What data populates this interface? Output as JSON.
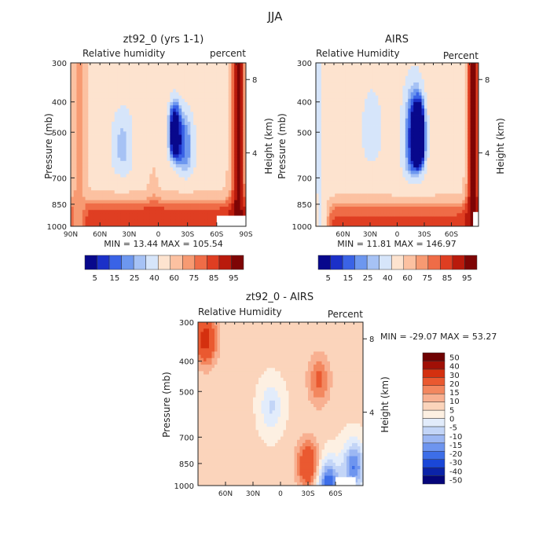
{
  "figure": {
    "title": "JJA"
  },
  "axes": {
    "pressure_label": "Pressure (mb)",
    "height_label": "Height (km)",
    "pressure_ticks": [
      "300",
      "400",
      "500",
      "700",
      "850",
      "1000"
    ],
    "pressure_values": [
      300,
      400,
      500,
      700,
      850,
      1000
    ],
    "height_ticks": [
      "8",
      "4"
    ],
    "height_values": [
      8,
      4
    ]
  },
  "palette": {
    "abs": [
      "#08088c",
      "#1b30c8",
      "#3a63e6",
      "#6d97ef",
      "#a6c2f5",
      "#d6e5fa",
      "#fde3cf",
      "#fcc1a1",
      "#f79a72",
      "#ef6c47",
      "#df3e22",
      "#b91a0c",
      "#7e0505"
    ],
    "diff": [
      "#05057a",
      "#0b23a8",
      "#1a47d8",
      "#3d6ee8",
      "#6e95ef",
      "#9cb7f3",
      "#c3d5f7",
      "#e2ecfb",
      "#fdf0e2",
      "#fbd4bb",
      "#f8b091",
      "#f3875f",
      "#ea5930",
      "#d4300f",
      "#a01006",
      "#6f0202"
    ]
  },
  "chart_data": [
    {
      "id": "model",
      "type": "heatmap",
      "title": "zt92_0 (yrs 1-1)",
      "subtitle_left": "Relative humidity",
      "subtitle_right": "percent",
      "xlabel": "",
      "ylabel": "Pressure (mb)",
      "ylabel_right": "Height (km)",
      "x_ticks": [
        "90N",
        "60N",
        "30N",
        "0",
        "30S",
        "60S",
        "90S"
      ],
      "x_values": [
        90,
        60,
        30,
        0,
        -30,
        -60,
        -90
      ],
      "xlim": [
        90,
        -90
      ],
      "ylim": [
        1000,
        300
      ],
      "min_max_text": "MIN =  13.44  MAX = 105.54",
      "min": 13.44,
      "max": 105.54,
      "colorbar_labels": [
        "5",
        "15",
        "25",
        "40",
        "60",
        "75",
        "85",
        "95"
      ],
      "colorbar_levels": [
        5,
        10,
        15,
        20,
        25,
        30,
        40,
        50,
        60,
        70,
        75,
        80,
        85,
        90,
        95
      ],
      "features": [
        {
          "kind": "background",
          "value": 55
        },
        {
          "kind": "trough",
          "lat": 37,
          "p_low": 390,
          "p_high": 720,
          "width": 15,
          "value": 28
        },
        {
          "kind": "trough",
          "lat": -28,
          "p_low": 400,
          "p_high": 720,
          "width": 12,
          "value": 22
        },
        {
          "kind": "trough",
          "lat": -16,
          "p_low": 380,
          "p_high": 620,
          "width": 7,
          "value": 10
        },
        {
          "kind": "moist_column",
          "lat": 5,
          "width": 6,
          "value": 72
        },
        {
          "kind": "pbl",
          "p_top": 820,
          "value": 85
        },
        {
          "kind": "moist_edge",
          "lat": -82,
          "value": 92
        },
        {
          "kind": "moist_edge",
          "lat": 82,
          "value": 72
        }
      ],
      "missing": [
        {
          "lat_from": -60,
          "lat_to": -90,
          "p_from": 925,
          "p_to": 1000
        }
      ]
    },
    {
      "id": "obs",
      "type": "heatmap",
      "title": "AIRS",
      "subtitle_left": "Relative Humidity",
      "subtitle_right": "Percent",
      "xlabel": "",
      "ylabel": "Pressure (mb)",
      "ylabel_right": "Height (km)",
      "x_ticks": [
        "60N",
        "30N",
        "0",
        "30S",
        "60S"
      ],
      "x_values": [
        60,
        30,
        0,
        -30,
        -60
      ],
      "xlim": [
        90,
        -90
      ],
      "ylim": [
        1000,
        300
      ],
      "min_max_text": "MIN =  11.81  MAX = 146.97",
      "min": 11.81,
      "max": 146.97,
      "colorbar_labels": [
        "5",
        "15",
        "25",
        "40",
        "60",
        "75",
        "85",
        "95"
      ],
      "colorbar_levels": [
        5,
        10,
        15,
        20,
        25,
        30,
        40,
        50,
        60,
        70,
        75,
        80,
        85,
        90,
        95
      ],
      "features": [
        {
          "kind": "background",
          "value": 52
        },
        {
          "kind": "trough",
          "lat": 28,
          "p_low": 350,
          "p_high": 640,
          "width": 13,
          "value": 30
        },
        {
          "kind": "trough",
          "lat": -18,
          "p_low": 320,
          "p_high": 740,
          "width": 14,
          "value": 16
        },
        {
          "kind": "trough",
          "lat": -24,
          "p_low": 400,
          "p_high": 640,
          "width": 7,
          "value": 6
        },
        {
          "kind": "pbl",
          "p_top": 830,
          "value": 82
        },
        {
          "kind": "moist_edge",
          "lat": -84,
          "value": 93
        },
        {
          "kind": "moist_edge",
          "lat": 86,
          "value": 38
        }
      ],
      "missing": [
        {
          "lat_from": -84,
          "lat_to": -90,
          "p_from": 900,
          "p_to": 1000
        }
      ]
    },
    {
      "id": "diff",
      "type": "heatmap",
      "title": "zt92_0 - AIRS",
      "subtitle_left": "Relative Humidity",
      "subtitle_right": "Percent",
      "xlabel": "",
      "ylabel": "Pressure (mb)",
      "ylabel_right": "Height (km)",
      "x_ticks": [
        "60N",
        "30N",
        "0",
        "30S",
        "60S"
      ],
      "x_values": [
        60,
        30,
        0,
        -30,
        -60
      ],
      "xlim": [
        90,
        -90
      ],
      "ylim": [
        1000,
        300
      ],
      "min_max_text": "MIN = -29.07   MAX =  53.27",
      "min": -29.07,
      "max": 53.27,
      "colorbar_labels": [
        "50",
        "40",
        "30",
        "20",
        "15",
        "10",
        "5",
        "0",
        "-5",
        "-10",
        "-15",
        "-20",
        "-30",
        "-40",
        "-50"
      ],
      "colorbar_levels": [
        -50,
        -40,
        -30,
        -20,
        -15,
        -10,
        -5,
        0,
        5,
        10,
        15,
        20,
        30,
        40,
        50
      ],
      "features": [
        {
          "kind": "background",
          "value": 6
        },
        {
          "kind": "blob",
          "lat": 82,
          "p": 340,
          "value": 35
        },
        {
          "kind": "blob",
          "lat": -42,
          "p": 460,
          "value": 22
        },
        {
          "kind": "blob",
          "lat": -30,
          "p": 860,
          "value": 30
        },
        {
          "kind": "blob",
          "lat": 10,
          "p": 560,
          "value": -6
        },
        {
          "kind": "blob",
          "lat": -80,
          "p": 870,
          "value": -20
        },
        {
          "kind": "blob",
          "lat": -52,
          "p": 990,
          "value": -25
        }
      ],
      "missing": [
        {
          "lat_from": -60,
          "lat_to": -82,
          "p_from": 940,
          "p_to": 1000
        }
      ]
    }
  ]
}
